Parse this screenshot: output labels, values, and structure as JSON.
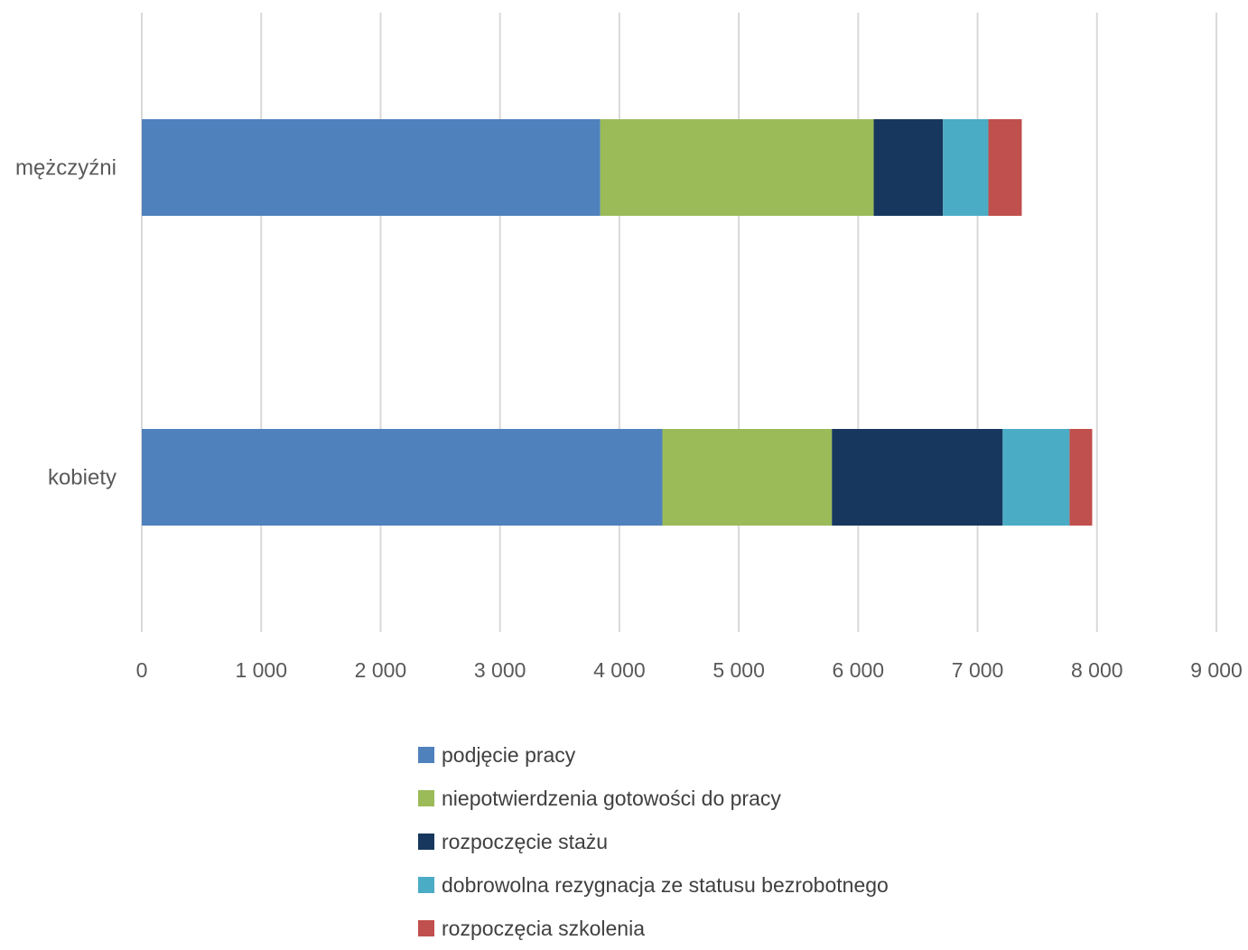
{
  "chart_data": {
    "type": "bar",
    "orientation": "horizontal",
    "stacked": true,
    "categories": [
      "kobiety",
      "mężczyźni"
    ],
    "series": [
      {
        "name": "podjęcie pracy",
        "color": "#4f81bd",
        "values": [
          4360,
          3840
        ]
      },
      {
        "name": "niepotwierdzenia gotowości do pracy",
        "color": "#9bbb59",
        "values": [
          1420,
          2290
        ]
      },
      {
        "name": "rozpoczęcie stażu",
        "color": "#17375e",
        "values": [
          1430,
          580
        ]
      },
      {
        "name": "dobrowolna rezygnacja ze statusu bezrobotnego",
        "color": "#4bacc6",
        "values": [
          560,
          380
        ]
      },
      {
        "name": "rozpoczęcia szkolenia",
        "color": "#c0504d",
        "values": [
          190,
          280
        ]
      }
    ],
    "xlim": [
      0,
      9000
    ],
    "xticks": [
      "0",
      "1 000",
      "2 000",
      "3 000",
      "4 000",
      "5 000",
      "6 000",
      "7 000",
      "8 000",
      "9 000"
    ],
    "grid": true,
    "legend_position": "bottom"
  }
}
